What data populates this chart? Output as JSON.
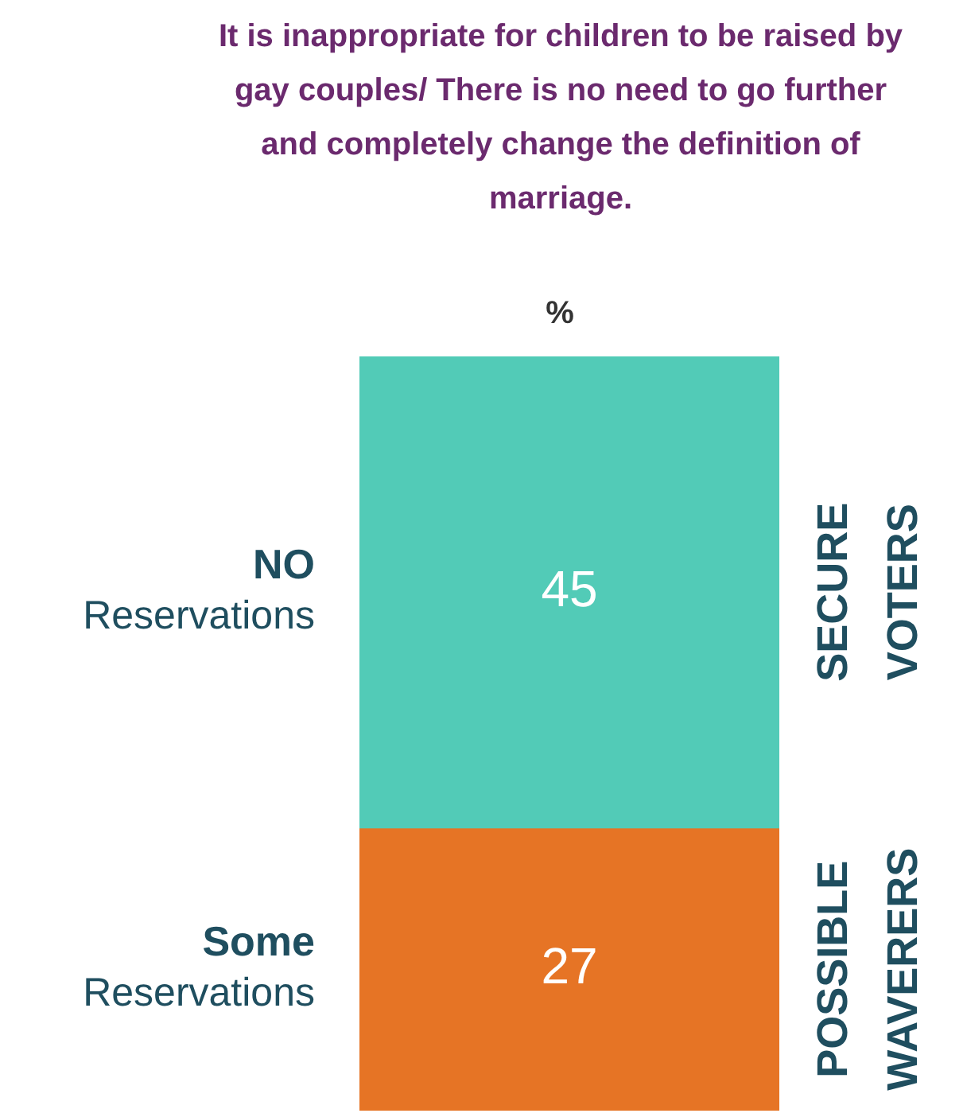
{
  "chart_data": {
    "type": "bar",
    "title": "It is inappropriate for children to be raised by gay couples/ There is no need to go further and completely change the definition of marriage.",
    "subtitle": "%",
    "categories": [
      null
    ],
    "stacked": true,
    "data_labels": true,
    "legend": false,
    "series": [
      {
        "name": "Some Reservations",
        "color": "#e67425",
        "values": [
          27
        ]
      },
      {
        "name": "NO Reservations",
        "color": "#52cbb7",
        "values": [
          45
        ]
      }
    ],
    "annotations": [
      "POSSIBLE WAVERERS",
      "SECURE VOTERS"
    ]
  }
}
